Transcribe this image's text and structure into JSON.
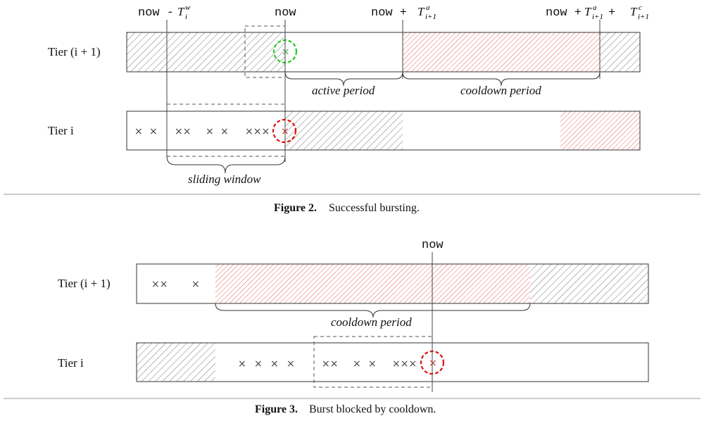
{
  "figure2": {
    "labels": {
      "now_minus_tw_code": "now - ",
      "now_minus_tw_var": "T",
      "now_minus_tw_sub": "i",
      "now_minus_tw_sup": "w",
      "now": "now",
      "now_plus_ta_code": "now + ",
      "now_plus_ta_var": "T",
      "now_plus_ta_sub": "i+1",
      "now_plus_ta_sup": "a",
      "now_plus_ta_tc_code1": "now + ",
      "now_plus_ta_tc_var1": "T",
      "now_plus_ta_tc_sub1": "i+1",
      "now_plus_ta_tc_sup1": "a",
      "now_plus_ta_tc_code2": " + ",
      "now_plus_ta_tc_var2": "T",
      "now_plus_ta_tc_sub2": "i+1",
      "now_plus_ta_tc_sup2": "c"
    },
    "tier_upper": "Tier (i + 1)",
    "tier_lower": "Tier i",
    "active_period": "active period",
    "cooldown_period": "cooldown period",
    "sliding_window": "sliding window",
    "caption_bold": "Figure 2.",
    "caption_text": "Successful bursting.",
    "crosses_lower": [
      "×",
      "×",
      "××",
      "×",
      "×",
      "×××"
    ],
    "cross_highlight": "×"
  },
  "figure3": {
    "now": "now",
    "tier_upper": "Tier (i + 1)",
    "tier_lower": "Tier i",
    "cooldown_period": "cooldown period",
    "caption_bold": "Figure 3.",
    "caption_text": "Burst blocked by cooldown.",
    "crosses_upper": [
      "××",
      "×"
    ],
    "crosses_lower": [
      "×",
      "×",
      "×",
      "×",
      "××",
      "×",
      "×",
      "×××"
    ],
    "cross_highlight": "×"
  },
  "colors": {
    "gray_hatch": "#555555",
    "red_hatch": "#e03b3b",
    "green_circle": "#22cc22",
    "red_circle": "#dd1111",
    "rule": "#999999"
  }
}
